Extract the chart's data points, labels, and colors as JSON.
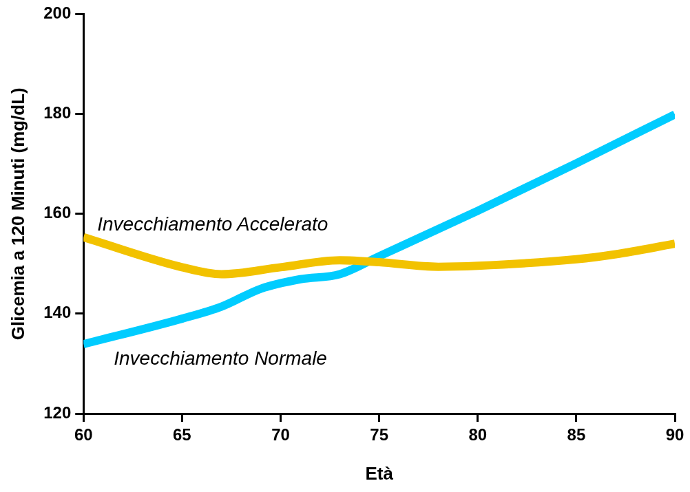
{
  "chart_data": {
    "type": "line",
    "xlabel": "Età",
    "ylabel": "Glicemia a 120 Minuti (mg/dL)",
    "xlim": [
      60,
      90
    ],
    "xticks": [
      60,
      65,
      70,
      75,
      80,
      85,
      90
    ],
    "ylim": [
      120,
      200
    ],
    "yticks": [
      120,
      140,
      160,
      180,
      200
    ],
    "grid": false,
    "legend": false,
    "marker": "none",
    "line_style": "solid",
    "series": [
      {
        "name": "Invecchiamento Accelerato",
        "color": "#f2c200",
        "x": [
          60,
          65,
          67,
          70,
          73,
          75,
          78,
          80,
          85,
          87,
          90
        ],
        "values": [
          155.3,
          149.3,
          147.9,
          149.3,
          150.7,
          150.3,
          149.4,
          149.6,
          150.9,
          151.9,
          154
        ]
      },
      {
        "name": "Invecchiamento Normale",
        "color": "#00ccff",
        "x": [
          60,
          65,
          67,
          69,
          71,
          73,
          75,
          80,
          85,
          90
        ],
        "values": [
          133.9,
          139,
          141.4,
          145,
          146.9,
          147.9,
          151.5,
          160.6,
          170.1,
          179.9
        ]
      }
    ]
  }
}
